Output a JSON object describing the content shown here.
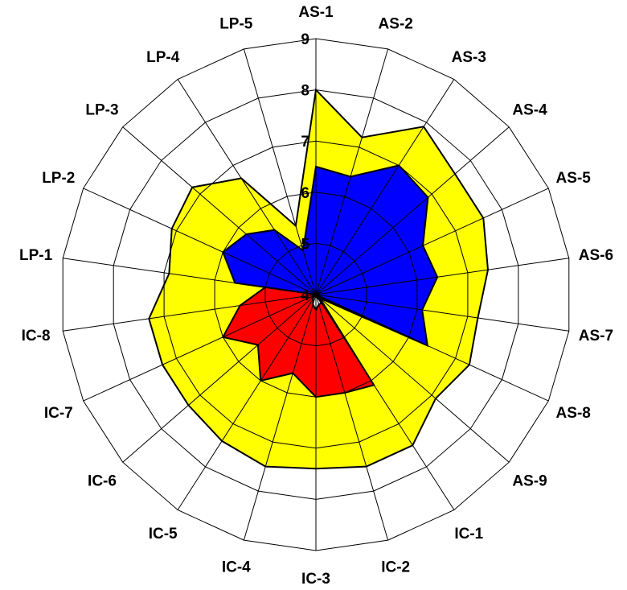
{
  "chart_data": {
    "type": "radar",
    "title": "",
    "categories": [
      "AS-1",
      "AS-2",
      "AS-3",
      "AS-4",
      "AS-5",
      "AS-6",
      "AS-7",
      "AS-8",
      "AS-9",
      "IC-1",
      "IC-2",
      "IC-3",
      "IC-4",
      "IC-5",
      "IC-6",
      "IC-7",
      "IC-8",
      "LP-1",
      "LP-2",
      "LP-3",
      "LP-4",
      "LP-5"
    ],
    "ticks": [
      "4",
      "5",
      "6",
      "7",
      "8",
      "9"
    ],
    "rlim": [
      4,
      9
    ],
    "grid": true,
    "legend": "none",
    "series": [
      {
        "color": "#ffff00",
        "values": [
          8.0,
          7.2,
          7.9,
          7.6,
          7.6,
          7.4,
          7.2,
          7.3,
          7.1,
          7.5,
          7.5,
          7.4,
          7.5,
          7.4,
          7.3,
          7.3,
          7.3,
          6.9,
          7.1,
          7.2,
          6.7,
          5.4
        ]
      },
      {
        "color": "#0000ff",
        "values": [
          6.5,
          6.4,
          7.0,
          6.9,
          6.3,
          6.4,
          6.1,
          6.4,
          4.1,
          4.2,
          4.2,
          4.3,
          4.2,
          4.1,
          4.1,
          4.0,
          4.0,
          5.6,
          6.0,
          5.8,
          5.5,
          4.9
        ]
      },
      {
        "color": "#ff0000",
        "values": [
          4.0,
          4.0,
          4.0,
          4.0,
          4.0,
          4.0,
          4.0,
          6.2,
          4.1,
          6.1,
          6.0,
          6.0,
          5.6,
          6.0,
          5.5,
          6.0,
          5.5,
          5.0,
          4.0,
          4.0,
          4.0,
          4.0
        ]
      },
      {
        "color": "#ffffff",
        "values": [
          4.0,
          4.0,
          4.0,
          4.0,
          4.0,
          4.0,
          4.0,
          4.0,
          4.0,
          4.2,
          4.2,
          4.3,
          4.2,
          4.1,
          4.1,
          4.0,
          4.0,
          4.0,
          4.0,
          4.0,
          4.0,
          4.0
        ]
      }
    ]
  }
}
